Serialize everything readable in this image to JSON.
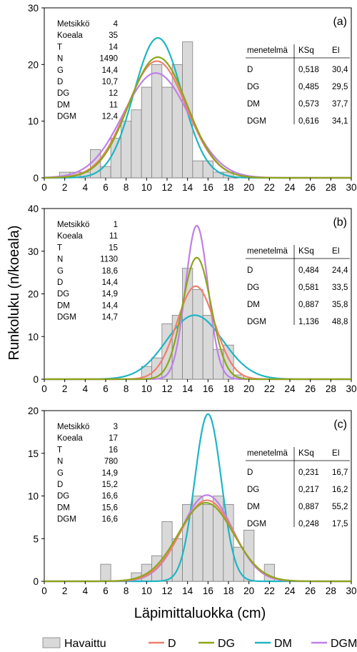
{
  "chart_data": [
    {
      "type": "bar",
      "panel_label": "(a)",
      "x_ticks": [
        0,
        2,
        4,
        6,
        8,
        10,
        12,
        14,
        16,
        18,
        20,
        22,
        24,
        26,
        28,
        30
      ],
      "y_ticks": [
        0,
        10,
        20,
        30
      ],
      "xlim": [
        0,
        30
      ],
      "ylim": [
        0,
        30
      ],
      "bins": [
        2,
        3,
        4,
        5,
        6,
        7,
        8,
        9,
        10,
        11,
        12,
        13,
        14,
        15,
        16,
        17,
        18,
        19,
        20
      ],
      "observed": [
        1,
        1,
        1,
        5,
        2,
        7,
        10,
        12,
        16,
        20,
        16,
        20,
        24,
        3,
        3,
        1,
        1,
        0,
        0
      ],
      "curves": {
        "D": {
          "mu": 11.0,
          "sigma": 2.9,
          "peak": 20.6
        },
        "DG": {
          "mu": 11.1,
          "sigma": 2.85,
          "peak": 21.3
        },
        "DM": {
          "mu": 11.1,
          "sigma": 2.35,
          "peak": 24.7
        },
        "DGM": {
          "mu": 10.9,
          "sigma": 3.2,
          "peak": 18.5
        }
      },
      "info": [
        {
          "k": "Metsikkö",
          "v": "4"
        },
        {
          "k": "Koeala",
          "v": "35"
        },
        {
          "k": "T",
          "v": "14"
        },
        {
          "k": "N",
          "v": "1490"
        },
        {
          "k": "G",
          "v": "14,4"
        },
        {
          "k": "D",
          "v": "10,7"
        },
        {
          "k": "DG",
          "v": "12"
        },
        {
          "k": "DM",
          "v": "11"
        },
        {
          "k": "DGM",
          "v": "12,4"
        }
      ],
      "table_header": [
        "menetelmä",
        "KSq",
        "EI"
      ],
      "table_rows": [
        [
          "D",
          "0,518",
          "30,4"
        ],
        [
          "DG",
          "0,485",
          "29,5"
        ],
        [
          "DM",
          "0,573",
          "37,7"
        ],
        [
          "DGM",
          "0,616",
          "34,1"
        ]
      ]
    },
    {
      "type": "bar",
      "panel_label": "(b)",
      "x_ticks": [
        0,
        2,
        4,
        6,
        8,
        10,
        12,
        14,
        16,
        18,
        20,
        22,
        24,
        26,
        28,
        30
      ],
      "y_ticks": [
        0,
        10,
        20,
        30,
        40
      ],
      "xlim": [
        0,
        30
      ],
      "ylim": [
        0,
        40
      ],
      "bins": [
        10,
        11,
        12,
        13,
        14,
        15,
        16,
        17,
        18,
        19
      ],
      "observed": [
        3,
        5,
        13,
        15,
        26,
        21,
        15,
        7,
        8,
        1
      ],
      "curves": {
        "D": {
          "mu": 14.8,
          "sigma": 1.85,
          "peak": 21.8
        },
        "DG": {
          "mu": 14.9,
          "sigma": 1.4,
          "peak": 28.5
        },
        "DM": {
          "mu": 14.7,
          "sigma": 2.75,
          "peak": 15.0
        },
        "DGM": {
          "mu": 14.9,
          "sigma": 1.1,
          "peak": 36.0
        }
      },
      "info": [
        {
          "k": "Metsikkö",
          "v": "1"
        },
        {
          "k": "Koeala",
          "v": "11"
        },
        {
          "k": "T",
          "v": "15"
        },
        {
          "k": "N",
          "v": "1130"
        },
        {
          "k": "G",
          "v": "18,6"
        },
        {
          "k": "D",
          "v": "14,4"
        },
        {
          "k": "DG",
          "v": "14,9"
        },
        {
          "k": "DM",
          "v": "14,4"
        },
        {
          "k": "DGM",
          "v": "14,7"
        }
      ],
      "table_header": [
        "menetelmä",
        "KSq",
        "EI"
      ],
      "table_rows": [
        [
          "D",
          "0,484",
          "24,4"
        ],
        [
          "DG",
          "0,581",
          "33,5"
        ],
        [
          "DM",
          "0,887",
          "35,8"
        ],
        [
          "DGM",
          "1,136",
          "48,8"
        ]
      ]
    },
    {
      "type": "bar",
      "panel_label": "(c)",
      "x_ticks": [
        0,
        2,
        4,
        6,
        8,
        10,
        12,
        14,
        16,
        18,
        20,
        22,
        24,
        26,
        28,
        30
      ],
      "y_ticks": [
        0,
        5,
        10,
        15,
        20
      ],
      "xlim": [
        0,
        30
      ],
      "ylim": [
        0,
        20
      ],
      "bins": [
        6,
        7,
        8,
        9,
        10,
        11,
        12,
        13,
        14,
        15,
        16,
        17,
        18,
        19,
        20,
        21,
        22
      ],
      "observed": [
        2,
        0,
        0,
        1,
        2,
        3,
        7,
        5,
        9,
        10,
        9,
        10,
        9,
        4,
        6,
        0,
        2
      ],
      "curves": {
        "D": {
          "mu": 15.9,
          "sigma": 2.6,
          "peak": 9.5
        },
        "DG": {
          "mu": 15.8,
          "sigma": 2.7,
          "peak": 9.2
        },
        "DM": {
          "mu": 16.0,
          "sigma": 1.3,
          "peak": 19.6
        },
        "DGM": {
          "mu": 15.9,
          "sigma": 2.5,
          "peak": 10.1
        }
      },
      "info": [
        {
          "k": "Metsikkö",
          "v": "3"
        },
        {
          "k": "Koeala",
          "v": "17"
        },
        {
          "k": "T",
          "v": "16"
        },
        {
          "k": "N",
          "v": "780"
        },
        {
          "k": "G",
          "v": "14,9"
        },
        {
          "k": "D",
          "v": "15,2"
        },
        {
          "k": "DG",
          "v": "16,6"
        },
        {
          "k": "DM",
          "v": "15,6"
        },
        {
          "k": "DGM",
          "v": "16,6"
        }
      ],
      "table_header": [
        "menetelmä",
        "KSq",
        "EI"
      ],
      "table_rows": [
        [
          "D",
          "0,231",
          "16,7"
        ],
        [
          "DG",
          "0,217",
          "16,2"
        ],
        [
          "DM",
          "0,887",
          "55,2"
        ],
        [
          "DGM",
          "0,248",
          "17,5"
        ]
      ]
    }
  ],
  "ylabel": "Runkoluku (n/koeala)",
  "xlabel": "Läpimittaluokka (cm)",
  "legend": [
    {
      "name": "Havaittu",
      "kind": "bar",
      "color": "#d9d9d9"
    },
    {
      "name": "D",
      "kind": "line",
      "color": "#f07f6e"
    },
    {
      "name": "DG",
      "kind": "line",
      "color": "#8ca61a"
    },
    {
      "name": "DM",
      "kind": "line",
      "color": "#1fb5c3"
    },
    {
      "name": "DGM",
      "kind": "line",
      "color": "#bf7fe8"
    }
  ],
  "colors": {
    "bar_fill": "#d9d9d9",
    "bar_stroke": "#7f7f7f",
    "D": "#f07f6e",
    "DG": "#8ca61a",
    "DM": "#1fb5c3",
    "DGM": "#bf7fe8"
  }
}
